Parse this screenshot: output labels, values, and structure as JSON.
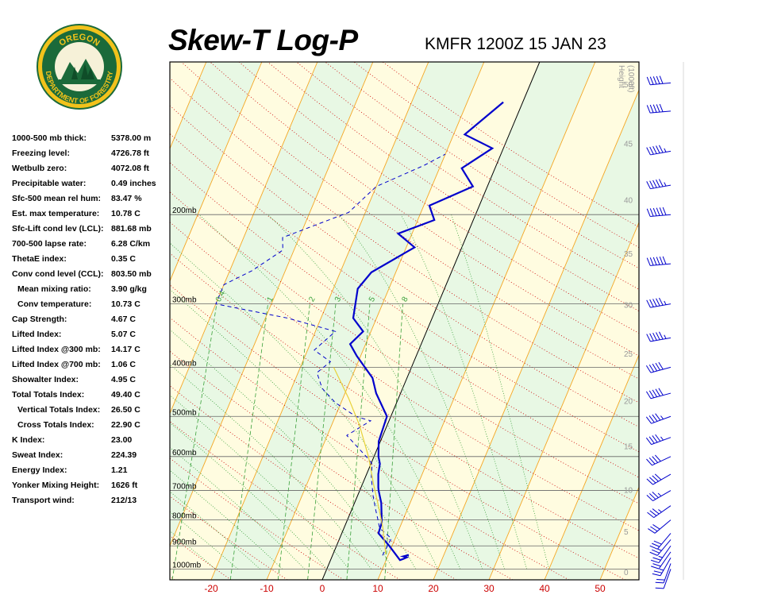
{
  "header": {
    "title": "Skew-T Log-P",
    "station_time": "KMFR 1200Z 15 JAN 23"
  },
  "logo": {
    "top_text": "OREGON",
    "ring_text": "DEPARTMENT OF FORESTRY",
    "colors": {
      "ring": "#1b6a3a",
      "gold": "#f2c21b",
      "tree": "#1b6a3a"
    }
  },
  "indices": [
    {
      "label": "1000-500 mb thick:",
      "value": "5378.00 m"
    },
    {
      "label": "Freezing level:",
      "value": "4726.78 ft"
    },
    {
      "label": "Wetbulb zero:",
      "value": "4072.08 ft"
    },
    {
      "label": "Precipitable water:",
      "value": "0.49 inches"
    },
    {
      "label": "Sfc-500 mean rel hum:",
      "value": "83.47 %"
    },
    {
      "label": "Est. max temperature:",
      "value": "10.78 C"
    },
    {
      "label": "Sfc-Lift cond lev (LCL):",
      "value": "881.68 mb"
    },
    {
      "label": "700-500 lapse rate:",
      "value": "6.28 C/km"
    },
    {
      "label": "ThetaE index:",
      "value": "0.35 C"
    },
    {
      "label": "Conv cond level (CCL):",
      "value": "803.50 mb"
    },
    {
      "label": "Mean mixing ratio:",
      "value": "3.90 g/kg",
      "indent": true
    },
    {
      "label": "Conv temperature:",
      "value": "10.73 C",
      "indent": true
    },
    {
      "label": "Cap Strength:",
      "value": "4.67 C"
    },
    {
      "label": "Lifted Index:",
      "value": "5.07 C"
    },
    {
      "label": "Lifted Index @300 mb:",
      "value": "14.17 C"
    },
    {
      "label": "Lifted Index @700 mb:",
      "value": "1.06 C"
    },
    {
      "label": "Showalter Index:",
      "value": "4.95 C"
    },
    {
      "label": "Total Totals Index:",
      "value": "49.40 C"
    },
    {
      "label": "Vertical Totals Index:",
      "value": "26.50 C",
      "indent": true
    },
    {
      "label": "Cross Totals Index:",
      "value": "22.90 C",
      "indent": true
    },
    {
      "label": "K Index:",
      "value": "23.00"
    },
    {
      "label": "Sweat Index:",
      "value": "224.39"
    },
    {
      "label": "Energy Index:",
      "value": "1.21"
    },
    {
      "label": "Yonker Mixing Height:",
      "value": "1626 ft"
    },
    {
      "label": "Transport wind:",
      "value": "212/13"
    }
  ],
  "chart_data": {
    "type": "line",
    "x_axis": {
      "ticks": [
        -20,
        -10,
        0,
        10,
        20,
        30,
        40,
        50
      ],
      "color": "#cc0000"
    },
    "pressure_labels": [
      "200mb",
      "300mb",
      "400mb",
      "500mb",
      "600mb",
      "700mb",
      "800mb",
      "900mb",
      "1000mb"
    ],
    "pressure_levels": [
      200,
      300,
      400,
      500,
      600,
      700,
      800,
      900,
      1000
    ],
    "height_axis": {
      "label_line1": "Height",
      "label_line2": "(1000ft)",
      "ticks": [
        "0",
        "5",
        "10",
        "15",
        "20",
        "25",
        "30",
        "35",
        "40",
        "45",
        "50"
      ]
    },
    "mixing_ratio_labels": [
      "0.4",
      "1",
      "2",
      "3",
      "5",
      "8"
    ],
    "series": [
      {
        "role": "temperature",
        "color": "#0000cc",
        "points": [
          [
            13.7,
            938
          ],
          [
            12.8,
            944
          ],
          [
            13.5,
            948
          ],
          [
            13,
            955
          ],
          [
            12.5,
            960
          ],
          [
            9.5,
            900
          ],
          [
            6.6,
            850
          ],
          [
            6.4,
            810
          ],
          [
            4.8,
            740
          ],
          [
            3.4,
            700
          ],
          [
            3.1,
            690
          ],
          [
            2.1,
            650
          ],
          [
            1.6,
            620
          ],
          [
            0.8,
            600
          ],
          [
            -0.3,
            560
          ],
          [
            -0.7,
            500
          ],
          [
            -4.4,
            450
          ],
          [
            -6.2,
            420
          ],
          [
            -10.7,
            380
          ],
          [
            -12.8,
            360
          ],
          [
            -11.4,
            340
          ],
          [
            -14.2,
            320
          ],
          [
            -15.6,
            280
          ],
          [
            -14.4,
            260
          ],
          [
            -8.5,
            232
          ],
          [
            -12.5,
            218
          ],
          [
            -7,
            205
          ],
          [
            -9,
            192
          ],
          [
            -2.6,
            176
          ],
          [
            -6,
            162
          ],
          [
            -2,
            148
          ],
          [
            -8,
            139
          ],
          [
            -3.5,
            120
          ]
        ]
      },
      {
        "role": "dewpoint",
        "color": "#0000cc",
        "points": [
          [
            9,
            940
          ],
          [
            9.3,
            870
          ],
          [
            6.4,
            830
          ],
          [
            5.5,
            800
          ],
          [
            4.2,
            760
          ],
          [
            2.9,
            720
          ],
          [
            1.1,
            660
          ],
          [
            0.2,
            620
          ],
          [
            -1.4,
            600
          ],
          [
            -6.5,
            545
          ],
          [
            -3.3,
            510
          ],
          [
            -6.3,
            500
          ],
          [
            -11,
            470
          ],
          [
            -14.5,
            440
          ],
          [
            -16.6,
            410
          ],
          [
            -15,
            390
          ],
          [
            -18.8,
            370
          ],
          [
            -16.4,
            340
          ],
          [
            -26,
            320
          ],
          [
            -40,
            300
          ],
          [
            -40,
            275
          ],
          [
            -36,
            258
          ],
          [
            -32,
            235
          ],
          [
            -33,
            222
          ],
          [
            -23,
            198
          ],
          [
            -20,
            176
          ],
          [
            -13,
            160
          ],
          [
            -10,
            152
          ]
        ]
      },
      {
        "role": "parcel",
        "color": "#e8d23a",
        "points": [
          [
            9.5,
            935
          ],
          [
            7,
            830
          ],
          [
            4.5,
            750
          ],
          [
            2,
            680
          ],
          [
            -1,
            600
          ],
          [
            -5,
            520
          ],
          [
            -9,
            460
          ],
          [
            -14,
            400
          ]
        ]
      }
    ],
    "wind_barbs": [
      {
        "p": 1000,
        "dir": 200,
        "spd": 10
      },
      {
        "p": 975,
        "dir": 200,
        "spd": 20
      },
      {
        "p": 950,
        "dir": 210,
        "spd": 25
      },
      {
        "p": 925,
        "dir": 215,
        "spd": 20
      },
      {
        "p": 900,
        "dir": 215,
        "spd": 25
      },
      {
        "p": 875,
        "dir": 220,
        "spd": 25
      },
      {
        "p": 850,
        "dir": 220,
        "spd": 30
      },
      {
        "p": 800,
        "dir": 230,
        "spd": 30
      },
      {
        "p": 750,
        "dir": 235,
        "spd": 35
      },
      {
        "p": 700,
        "dir": 240,
        "spd": 35
      },
      {
        "p": 650,
        "dir": 240,
        "spd": 40
      },
      {
        "p": 600,
        "dir": 245,
        "spd": 40
      },
      {
        "p": 550,
        "dir": 250,
        "spd": 45
      },
      {
        "p": 500,
        "dir": 250,
        "spd": 45
      },
      {
        "p": 450,
        "dir": 255,
        "spd": 50
      },
      {
        "p": 400,
        "dir": 255,
        "spd": 50
      },
      {
        "p": 350,
        "dir": 260,
        "spd": 55
      },
      {
        "p": 300,
        "dir": 260,
        "spd": 55
      },
      {
        "p": 250,
        "dir": 265,
        "spd": 60
      },
      {
        "p": 200,
        "dir": 265,
        "spd": 60
      },
      {
        "p": 175,
        "dir": 260,
        "spd": 55
      },
      {
        "p": 150,
        "dir": 260,
        "spd": 55
      },
      {
        "p": 125,
        "dir": 265,
        "spd": 50
      },
      {
        "p": 110,
        "dir": 265,
        "spd": 50
      }
    ],
    "colors": {
      "band_light": "#fffce0",
      "band_green": "#e8f8e4",
      "isotherm": "#f5a623",
      "dry_adiabat": "#cc0000",
      "moist_adiabat": "#3aa03a",
      "mixing_ratio": "#3aa03a",
      "isobar": "#666666",
      "barb": "#0000cc"
    }
  }
}
